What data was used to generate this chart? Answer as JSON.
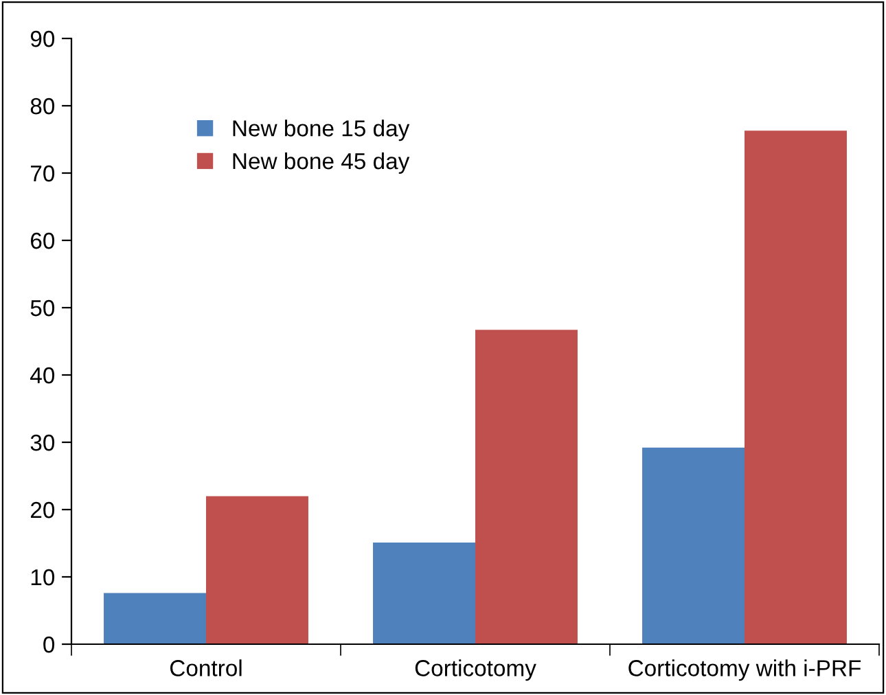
{
  "chart_data": {
    "type": "bar",
    "categories": [
      "Control",
      "Corticotomy",
      "Corticotomy with i-PRF"
    ],
    "series": [
      {
        "name": "New bone 15 day",
        "color": "#4f81bd",
        "values": [
          7.6,
          15.1,
          29.2
        ]
      },
      {
        "name": "New bone 45 day",
        "color": "#c0504d",
        "values": [
          22.0,
          46.7,
          76.3
        ]
      }
    ],
    "ylim": [
      0,
      90
    ],
    "yticks": [
      0,
      10,
      20,
      30,
      40,
      50,
      60,
      70,
      80,
      90
    ],
    "grid": false,
    "legend": "top left"
  }
}
